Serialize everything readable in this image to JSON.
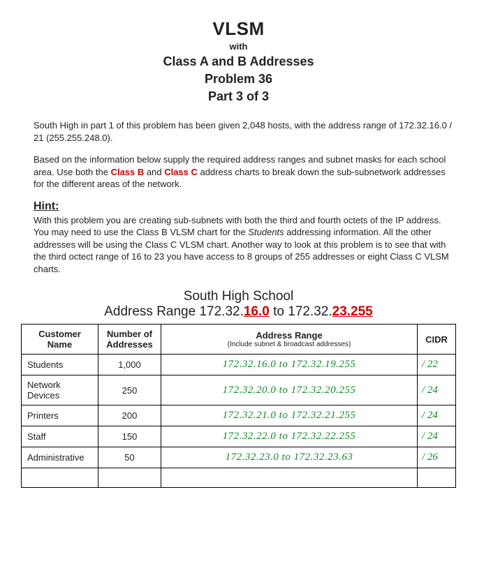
{
  "title": {
    "main": "VLSM",
    "with": "with",
    "sub1": "Class A and B Addresses",
    "sub2": "Problem 36",
    "sub3": "Part 3 of 3"
  },
  "para1": "South High in part 1 of this problem has been given 2,048 hosts, with the address range of 172.32.16.0 / 21 (255.255.248.0).",
  "para2_a": "Based on the information below supply the required address ranges and subnet masks for each school area.  Use both the ",
  "para2_b": "Class B",
  "para2_c": " and  ",
  "para2_d": "Class C",
  "para2_e": " address charts to break down the sub-subnetwork addresses for the different areas of the network.",
  "hint_label": "Hint:",
  "hint_body_a": "With this problem you are creating sub-subnets with both the third and fourth octets of the IP address.  You may need to use the Class B VLSM chart for the ",
  "hint_body_b": "Students",
  "hint_body_c": " addressing information.  All the other addresses will be using the Class C VLSM chart.  Another way to look at this problem is to see that with the third octect range of 16 to 23 you have access to 8 groups of 255 addresses or eight Class C VLSM charts.",
  "school": {
    "name": "South High School",
    "range_a": "Address Range 172.32.",
    "range_b": "16.0",
    "range_c": " to 172.32.",
    "range_d": "23.255"
  },
  "table": {
    "headers": {
      "c1a": "Customer",
      "c1b": "Name",
      "c2a": "Number of",
      "c2b": "Addresses",
      "c3a": "Address Range",
      "c3b": "(Include subnet & broadcast addresses)",
      "c4": "CIDR"
    },
    "rows": [
      {
        "name": "Students",
        "num": "1,000",
        "range": "172.32.16.0 to 172.32.19.255",
        "cidr": "/ 22"
      },
      {
        "name": "Network Devices",
        "num": "250",
        "range": "172.32.20.0 to 172.32.20.255",
        "cidr": "/ 24"
      },
      {
        "name": "Printers",
        "num": "200",
        "range": "172.32.21.0 to 172.32.21.255",
        "cidr": "/ 24"
      },
      {
        "name": "Staff",
        "num": "150",
        "range": "172.32.22.0 to 172.32.22.255",
        "cidr": "/ 24"
      },
      {
        "name": "Administrative",
        "num": "50",
        "range": "172.32.23.0 to 172.32.23.63",
        "cidr": "/ 26"
      }
    ],
    "col_widths": [
      "110px",
      "90px",
      "auto",
      "55px"
    ],
    "border_color": "#000000",
    "answer_color": "#118a2a",
    "text_color": "#222222",
    "accent_red": "#cc0000",
    "background": "#ffffff",
    "font_body_pt": 13,
    "font_title_pt": 26
  }
}
